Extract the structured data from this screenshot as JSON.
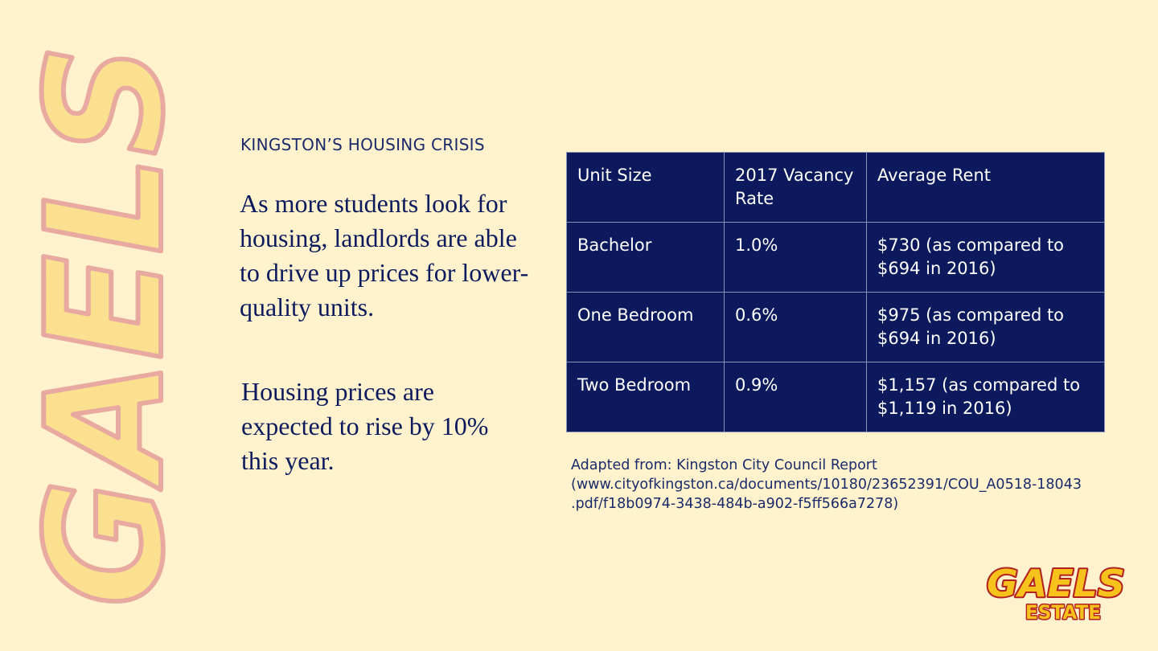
{
  "branding": {
    "side_wordmark": "GAELS",
    "logo_line1": "GAELS",
    "logo_line2": "ESTATE"
  },
  "slide": {
    "kicker": "KINGSTON’S HOUSING CRISIS",
    "paragraphs": [
      "As more students look for housing, landlords are able to drive up prices for lower-quality units.",
      "Housing prices are expected to rise by 10% this year."
    ]
  },
  "table": {
    "headers": [
      "Unit Size",
      "2017 Vacancy Rate",
      "Average Rent"
    ],
    "rows": [
      [
        "Bachelor",
        "1.0%",
        "$730 (as compared to $694 in 2016)"
      ],
      [
        "One Bedroom",
        "0.6%",
        "$975 (as compared to $694 in 2016)"
      ],
      [
        "Two Bedroom",
        "0.9%",
        "$1,157 (as compared to $1,119 in 2016)"
      ]
    ]
  },
  "source": {
    "line1": "Adapted from: Kingston City Council Report",
    "line2": "(www.cityofkingston.ca/documents/10180/23652391/COU_A0518-18043",
    "line3": ".pdf/f18b0974-3438-484b-a902-f5ff566a7278)"
  },
  "colors": {
    "background": "#fff2cc",
    "navy": "#0c1a5d",
    "gold": "#f7c21b",
    "logo_outline": "#b32020"
  }
}
